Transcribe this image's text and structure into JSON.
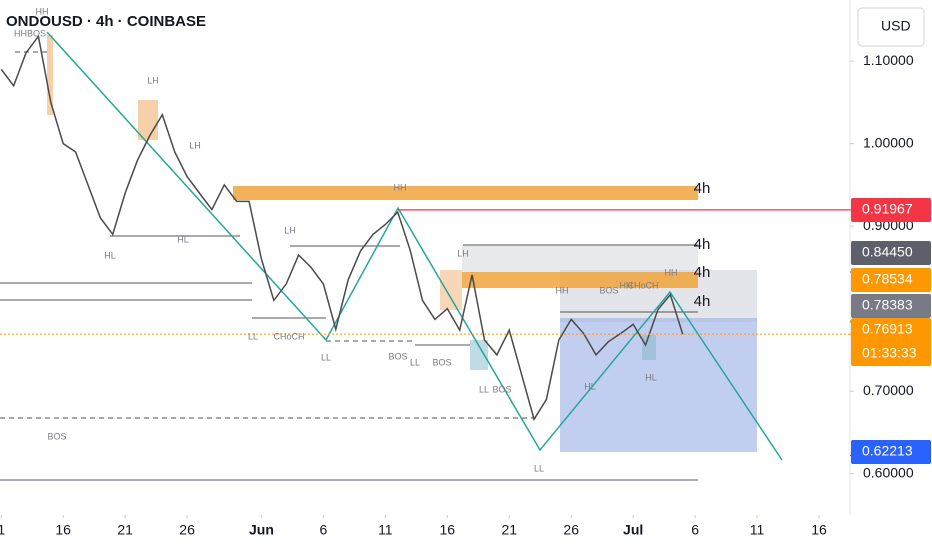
{
  "chart_data": {
    "type": "line",
    "title": "ONDOUSD · 4h · COINBASE",
    "currency": "USD",
    "x": [
      11,
      12,
      13,
      14,
      15,
      16,
      17,
      18,
      19,
      20,
      21,
      22,
      23,
      24,
      25,
      26,
      27,
      28,
      29,
      30,
      31,
      32,
      33,
      34,
      35,
      36,
      37,
      38,
      39,
      40,
      41,
      42,
      43,
      44,
      45,
      46,
      47,
      48,
      49,
      50,
      51,
      52,
      53,
      54,
      55,
      56,
      57,
      58,
      59,
      60,
      61,
      62,
      63,
      64,
      65,
      66
    ],
    "series": [
      {
        "name": "ONDOUSD",
        "color": "#4a4a4a",
        "values": [
          1.09,
          1.07,
          1.11,
          1.13,
          1.05,
          1.0,
          0.99,
          0.95,
          0.91,
          0.89,
          0.94,
          0.98,
          1.01,
          1.035,
          0.99,
          0.96,
          0.94,
          0.92,
          0.95,
          0.93,
          0.93,
          0.86,
          0.81,
          0.83,
          0.865,
          0.85,
          0.83,
          0.775,
          0.835,
          0.87,
          0.89,
          0.902,
          0.917,
          0.871,
          0.81,
          0.787,
          0.8,
          0.774,
          0.841,
          0.762,
          0.744,
          0.774,
          0.72,
          0.666,
          0.69,
          0.762,
          0.787,
          0.77,
          0.744,
          0.76,
          0.77,
          0.781,
          0.756,
          0.799,
          0.817,
          0.769
        ]
      }
    ],
    "xlim": [
      10.9,
      79.5
    ],
    "xticks": [
      {
        "value": 11,
        "label": "1"
      },
      16,
      21,
      26,
      {
        "value": 32,
        "label": "Jun"
      },
      {
        "value": 37,
        "label": "6"
      },
      {
        "value": 42,
        "label": "11"
      },
      {
        "value": 47,
        "label": "16"
      },
      {
        "value": 52,
        "label": "21"
      },
      {
        "value": 57,
        "label": "26"
      },
      {
        "value": 62,
        "label": "Jul"
      },
      {
        "value": 67,
        "label": "6"
      },
      {
        "value": 72,
        "label": "11"
      },
      {
        "value": 77,
        "label": "16"
      }
    ],
    "ylim": [
      0.55,
      1.174
    ],
    "yticks": [
      {
        "value": 0.6,
        "label": "0.60000"
      },
      {
        "value": 0.7,
        "label": "0.70000"
      },
      {
        "value": 0.9,
        "label": "0.90000"
      },
      {
        "value": 1.0,
        "label": "1.00000"
      },
      {
        "value": 1.1,
        "label": "1.10000"
      }
    ],
    "price_tags": {
      "values": [
        0.91967,
        0.8445,
        0.78534,
        0.78383,
        0.76913,
        0.62213
      ],
      "value_labels": [
        "0.91967",
        "0.84450",
        "0.78534",
        "0.78383",
        "0.76913",
        "0.62213"
      ],
      "colors": [
        "#f23645",
        "#5d606b",
        "#ff9800",
        "#787b86",
        "#ff9800",
        "#2962ff"
      ]
    },
    "countdown": "01:33:33",
    "annotations": [
      "HH",
      "HHBOS",
      "LH",
      "LH",
      "HL",
      "HL",
      "BOS",
      "HH",
      "LH",
      "LL",
      "CHoCH",
      "LL",
      "BOS",
      "LL",
      "BOS",
      "LH",
      "LL",
      "BOS",
      "LL",
      "HH",
      "BOS",
      "HH",
      "CHoCH",
      "HH",
      "HL",
      "HL",
      "4h",
      "4h",
      "4h",
      "4h"
    ]
  }
}
